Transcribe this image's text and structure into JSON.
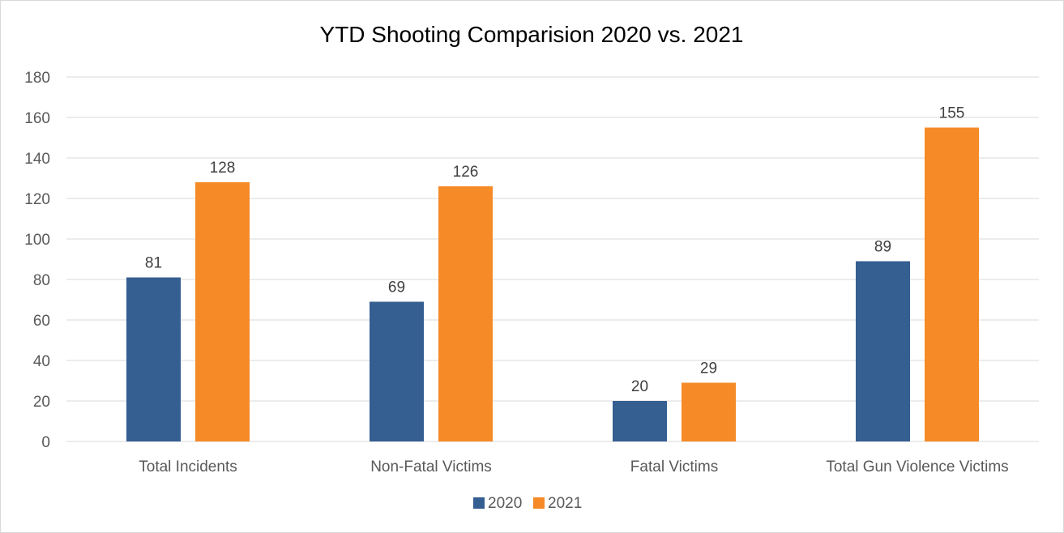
{
  "chart_data": {
    "type": "bar",
    "title": "YTD Shooting Comparision 2020 vs. 2021",
    "xlabel": "",
    "ylabel": "",
    "categories": [
      "Total Incidents",
      "Non-Fatal Victims",
      "Fatal Victims",
      "Total Gun Violence Victims"
    ],
    "series": [
      {
        "name": "2020",
        "color": "#355e91",
        "values": [
          81,
          69,
          20,
          89
        ]
      },
      {
        "name": "2021",
        "color": "#f58a27",
        "values": [
          128,
          126,
          29,
          155
        ]
      }
    ],
    "ylim": [
      0,
      180
    ],
    "yticks": [
      "0",
      "20",
      "40",
      "60",
      "80",
      "100",
      "120",
      "140",
      "160",
      "180"
    ],
    "grid": true,
    "legend_position": "bottom",
    "data_labels": true
  }
}
